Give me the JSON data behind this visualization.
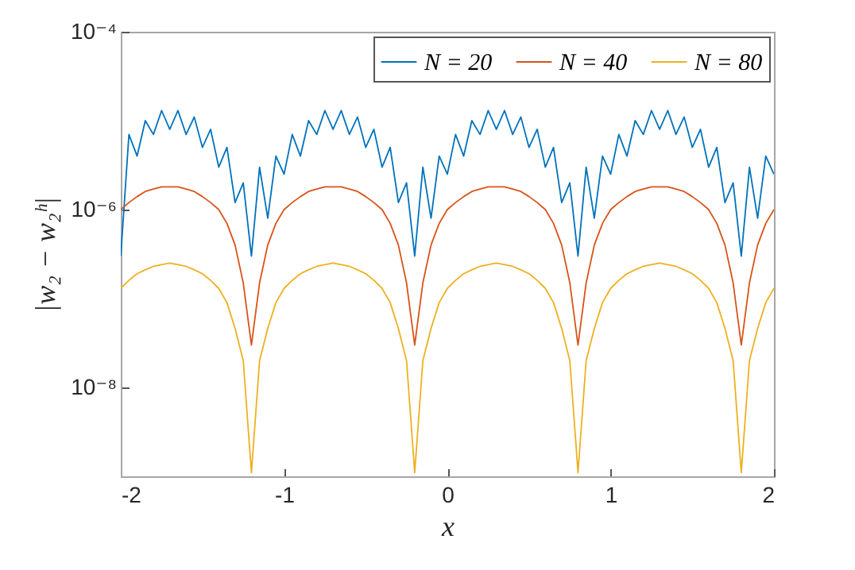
{
  "chart_data": {
    "type": "line",
    "xlabel": "x",
    "ylabel": "|w₂ − w₂ʰ|",
    "log": "y",
    "grid": false,
    "legend": "top right",
    "marker": "none",
    "line_style": "solid",
    "xlim": [
      -2,
      2
    ],
    "xticks": [
      -2,
      -1,
      0,
      1,
      2
    ],
    "ylim": [
      1e-09,
      0.0001
    ],
    "yticks": [
      {
        "value": 1e-08,
        "label": "10⁻⁸"
      },
      {
        "value": 1e-06,
        "label": "10⁻⁶"
      },
      {
        "value": 0.0001,
        "label": "10⁻⁴"
      }
    ],
    "x": [
      -2,
      -1.95,
      -1.9,
      -1.85,
      -1.8,
      -1.75,
      -1.7,
      -1.65,
      -1.6,
      -1.55,
      -1.5,
      -1.45,
      -1.4,
      -1.35,
      -1.3,
      -1.25,
      -1.2,
      -1.15,
      -1.1,
      -1.05,
      -1,
      -0.95,
      -0.9,
      -0.85,
      -0.8,
      -0.75,
      -0.7,
      -0.65,
      -0.6,
      -0.55,
      -0.5,
      -0.45,
      -0.4,
      -0.35,
      -0.3,
      -0.25,
      -0.2,
      -0.15,
      -0.1,
      -0.05,
      0,
      0.05,
      0.1,
      0.15,
      0.2,
      0.25,
      0.3,
      0.35,
      0.4,
      0.45,
      0.5,
      0.55,
      0.6,
      0.65,
      0.7,
      0.75,
      0.8,
      0.85,
      0.9,
      0.95,
      1,
      1.05,
      1.1,
      1.15,
      1.2,
      1.25,
      1.3,
      1.35,
      1.4,
      1.45,
      1.5,
      1.55,
      1.6,
      1.65,
      1.7,
      1.75,
      1.8,
      1.85,
      1.9,
      1.95,
      2
    ],
    "series": [
      {
        "name": "N = 20",
        "color": "#0072bd",
        "values": [
          3e-07,
          7e-06,
          4e-06,
          1e-05,
          7e-06,
          1.3e-05,
          8e-06,
          1.3e-05,
          7e-06,
          1.1e-05,
          5e-06,
          8e-06,
          3e-06,
          5e-06,
          1.2e-06,
          2e-06,
          3e-07,
          3e-06,
          8e-07,
          4e-06,
          2.5e-06,
          7e-06,
          4e-06,
          1e-05,
          7e-06,
          1.3e-05,
          8e-06,
          1.3e-05,
          7e-06,
          1.1e-05,
          5e-06,
          8e-06,
          3e-06,
          5e-06,
          1.2e-06,
          2e-06,
          3e-07,
          3e-06,
          8e-07,
          4e-06,
          2.5e-06,
          7e-06,
          4e-06,
          1e-05,
          7e-06,
          1.3e-05,
          8e-06,
          1.3e-05,
          7e-06,
          1.1e-05,
          5e-06,
          8e-06,
          3e-06,
          5e-06,
          1.2e-06,
          2e-06,
          3e-07,
          3e-06,
          8e-07,
          4e-06,
          2.5e-06,
          7e-06,
          4e-06,
          1e-05,
          7e-06,
          1.3e-05,
          8e-06,
          1.3e-05,
          7e-06,
          1.1e-05,
          5e-06,
          8e-06,
          3e-06,
          5e-06,
          1.2e-06,
          2e-06,
          3e-07,
          3e-06,
          8e-07,
          4e-06,
          2.5e-06
        ]
      },
      {
        "name": "N = 40",
        "color": "#d95319",
        "values": [
          1e-06,
          1.2e-06,
          1.4e-06,
          1.6e-06,
          1.7e-06,
          1.8e-06,
          1.8e-06,
          1.8e-06,
          1.7e-06,
          1.6e-06,
          1.4e-06,
          1.2e-06,
          1e-06,
          7e-07,
          4e-07,
          1.5e-07,
          3e-08,
          1.5e-07,
          4e-07,
          7e-07,
          1e-06,
          1.2e-06,
          1.4e-06,
          1.6e-06,
          1.7e-06,
          1.8e-06,
          1.8e-06,
          1.8e-06,
          1.7e-06,
          1.6e-06,
          1.4e-06,
          1.2e-06,
          1e-06,
          7e-07,
          4e-07,
          1.5e-07,
          3e-08,
          1.5e-07,
          4e-07,
          7e-07,
          1e-06,
          1.2e-06,
          1.4e-06,
          1.6e-06,
          1.7e-06,
          1.8e-06,
          1.8e-06,
          1.8e-06,
          1.7e-06,
          1.6e-06,
          1.4e-06,
          1.2e-06,
          1e-06,
          7e-07,
          4e-07,
          1.5e-07,
          3e-08,
          1.5e-07,
          4e-07,
          7e-07,
          1e-06,
          1.2e-06,
          1.4e-06,
          1.6e-06,
          1.7e-06,
          1.8e-06,
          1.8e-06,
          1.8e-06,
          1.7e-06,
          1.6e-06,
          1.4e-06,
          1.2e-06,
          1e-06,
          7e-07,
          4e-07,
          1.5e-07,
          3e-08,
          1.5e-07,
          4e-07,
          7e-07,
          1e-06
        ]
      },
      {
        "name": "N = 80",
        "color": "#edb120",
        "values": [
          1.3e-07,
          1.6e-07,
          1.9e-07,
          2.1e-07,
          2.3e-07,
          2.4e-07,
          2.5e-07,
          2.4e-07,
          2.3e-07,
          2.1e-07,
          1.9e-07,
          1.6e-07,
          1.3e-07,
          9e-08,
          4.6e-08,
          2e-08,
          1.1e-09,
          2e-08,
          4.6e-08,
          9e-08,
          1.3e-07,
          1.6e-07,
          1.9e-07,
          2.1e-07,
          2.3e-07,
          2.4e-07,
          2.5e-07,
          2.4e-07,
          2.3e-07,
          2.1e-07,
          1.9e-07,
          1.6e-07,
          1.3e-07,
          9e-08,
          4.6e-08,
          2e-08,
          1.1e-09,
          2e-08,
          4.6e-08,
          9e-08,
          1.3e-07,
          1.6e-07,
          1.9e-07,
          2.1e-07,
          2.3e-07,
          2.4e-07,
          2.5e-07,
          2.4e-07,
          2.3e-07,
          2.1e-07,
          1.9e-07,
          1.6e-07,
          1.3e-07,
          9e-08,
          4.6e-08,
          2e-08,
          1.1e-09,
          2e-08,
          4.6e-08,
          9e-08,
          1.3e-07,
          1.6e-07,
          1.9e-07,
          2.1e-07,
          2.3e-07,
          2.4e-07,
          2.5e-07,
          2.4e-07,
          2.3e-07,
          2.1e-07,
          1.9e-07,
          1.6e-07,
          1.3e-07,
          9e-08,
          4.6e-08,
          2e-08,
          1.1e-09,
          2e-08,
          4.6e-08,
          9e-08,
          1.3e-07
        ]
      }
    ]
  }
}
